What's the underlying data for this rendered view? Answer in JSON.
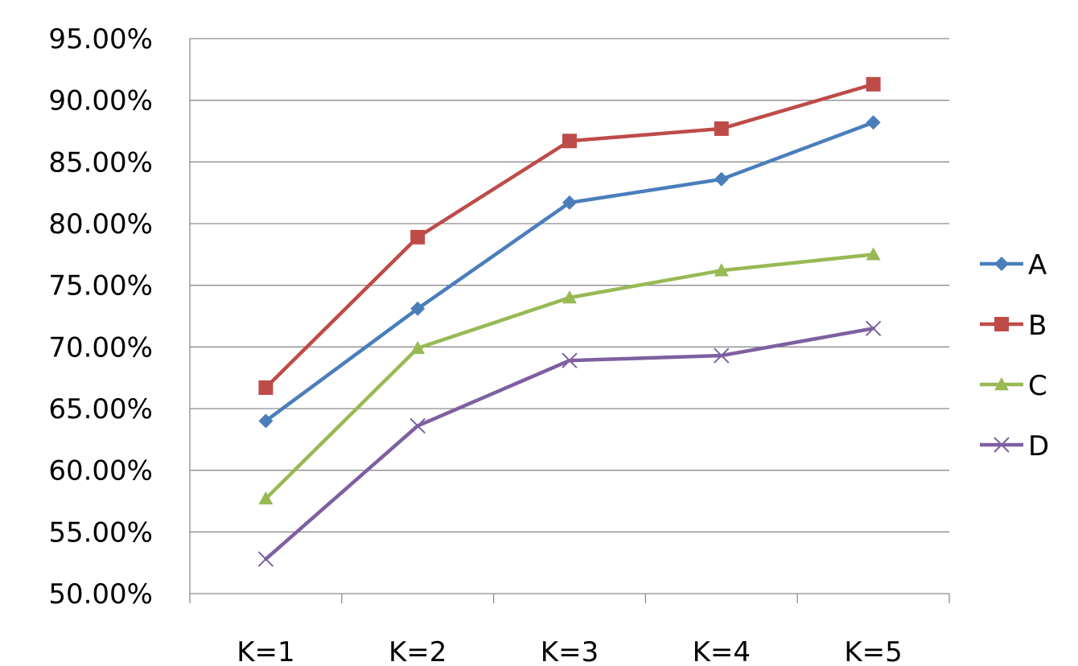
{
  "chart_data": {
    "type": "line",
    "title": "",
    "xlabel": "",
    "ylabel": "",
    "categories": [
      "K=1",
      "K=2",
      "K=3",
      "K=4",
      "K=5"
    ],
    "y_tick_labels": [
      "50.00%",
      "55.00%",
      "60.00%",
      "65.00%",
      "70.00%",
      "75.00%",
      "80.00%",
      "85.00%",
      "90.00%",
      "95.00%"
    ],
    "ylim": [
      50,
      95
    ],
    "y_step": 5,
    "y_unit": "%",
    "grid": true,
    "legend_position": "right",
    "series": [
      {
        "name": "A",
        "color": "#4a7ebb",
        "marker": "diamond",
        "values": [
          64.0,
          73.1,
          81.7,
          83.6,
          88.2
        ]
      },
      {
        "name": "B",
        "color": "#be4b48",
        "marker": "square",
        "values": [
          66.7,
          78.9,
          86.7,
          87.7,
          91.3
        ]
      },
      {
        "name": "C",
        "color": "#98b954",
        "marker": "triangle",
        "values": [
          57.7,
          69.9,
          74.0,
          76.2,
          77.5
        ]
      },
      {
        "name": "D",
        "color": "#7d60a0",
        "marker": "x",
        "values": [
          52.8,
          63.6,
          68.9,
          69.3,
          71.5
        ]
      }
    ]
  }
}
